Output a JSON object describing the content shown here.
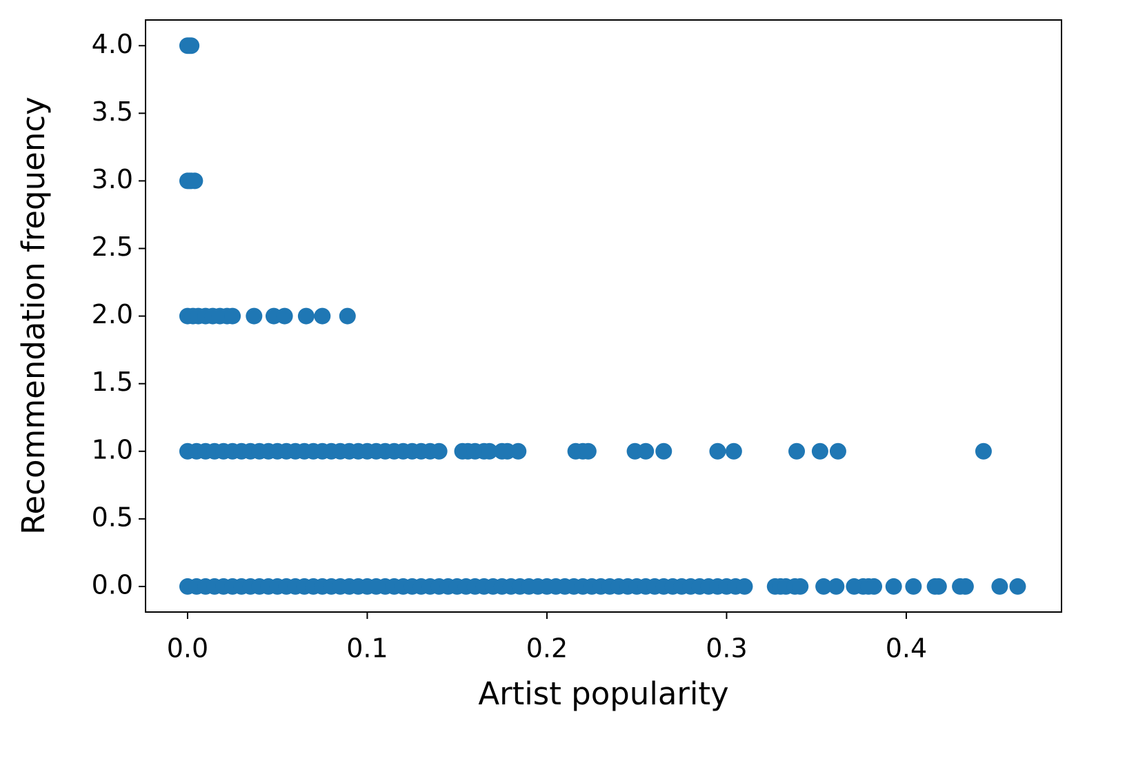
{
  "chart_data": {
    "type": "scatter",
    "x_label": "Artist popularity",
    "y_label": "Recommendation frequency",
    "color": "#1f77b4",
    "xlim": [
      -0.0234,
      0.4864
    ],
    "ylim": [
      -0.189,
      4.19
    ],
    "xticks": [
      {
        "value": 0,
        "label": "0.0"
      },
      0.1,
      0.2,
      0.3,
      0.4
    ],
    "yticks": [
      {
        "value": 0,
        "label": "0.0"
      },
      0.5,
      {
        "value": 1,
        "label": "1.0"
      },
      1.5,
      {
        "value": 2,
        "label": "2.0"
      },
      2.5,
      {
        "value": 3,
        "label": "3.0"
      },
      3.5,
      {
        "value": 4,
        "label": "4.0"
      }
    ],
    "x": [
      0,
      0.005,
      0.01,
      0.015,
      0.02,
      0.025,
      0.03,
      0.035,
      0.04,
      0.045,
      0.05,
      0.055,
      0.06,
      0.065,
      0.07,
      0.075,
      0.08,
      0.085,
      0.09,
      0.095,
      0.1,
      0.105,
      0.11,
      0.115,
      0.12,
      0.125,
      0.13,
      0.135,
      0.14,
      0.145,
      0.15,
      0.155,
      0.16,
      0.165,
      0.17,
      0.175,
      0.18,
      0.185,
      0.19,
      0.195,
      0.2,
      0.205,
      0.21,
      0.215,
      0.22,
      0.225,
      0.23,
      0.235,
      0.24,
      0.245,
      0.25,
      0.255,
      0.26,
      0.265,
      0.27,
      0.275,
      0.28,
      0.285,
      0.29,
      0.295,
      0.3,
      0.305,
      0.31,
      0.327,
      0.33,
      0.333,
      0.338,
      0.341,
      0.354,
      0.361,
      0.371,
      0.376,
      0.379,
      0.382,
      0.393,
      0.404,
      0.416,
      0.418,
      0.43,
      0.433,
      0.452,
      0.462,
      0,
      0.005,
      0.01,
      0.015,
      0.02,
      0.025,
      0.03,
      0.035,
      0.04,
      0.045,
      0.05,
      0.055,
      0.06,
      0.065,
      0.07,
      0.075,
      0.08,
      0.085,
      0.09,
      0.095,
      0.1,
      0.105,
      0.11,
      0.115,
      0.12,
      0.125,
      0.13,
      0.135,
      0.14,
      0.153,
      0.156,
      0.16,
      0.165,
      0.168,
      0.175,
      0.178,
      0.184,
      0.216,
      0.22,
      0.223,
      0.249,
      0.255,
      0.265,
      0.295,
      0.304,
      0.339,
      0.352,
      0.362,
      0.443,
      0,
      0.003,
      0.006,
      0.01,
      0.014,
      0.018,
      0.022,
      0.025,
      0.037,
      0.048,
      0.054,
      0.066,
      0.075,
      0.089,
      0,
      0.001,
      0.002,
      0.004,
      0,
      0.001,
      0.002
    ],
    "values": [
      0,
      0,
      0,
      0,
      0,
      0,
      0,
      0,
      0,
      0,
      0,
      0,
      0,
      0,
      0,
      0,
      0,
      0,
      0,
      0,
      0,
      0,
      0,
      0,
      0,
      0,
      0,
      0,
      0,
      0,
      0,
      0,
      0,
      0,
      0,
      0,
      0,
      0,
      0,
      0,
      0,
      0,
      0,
      0,
      0,
      0,
      0,
      0,
      0,
      0,
      0,
      0,
      0,
      0,
      0,
      0,
      0,
      0,
      0,
      0,
      0,
      0,
      0,
      0,
      0,
      0,
      0,
      0,
      0,
      0,
      0,
      0,
      0,
      0,
      0,
      0,
      0,
      0,
      0,
      0,
      0,
      0,
      1,
      1,
      1,
      1,
      1,
      1,
      1,
      1,
      1,
      1,
      1,
      1,
      1,
      1,
      1,
      1,
      1,
      1,
      1,
      1,
      1,
      1,
      1,
      1,
      1,
      1,
      1,
      1,
      1,
      1,
      1,
      1,
      1,
      1,
      1,
      1,
      1,
      1,
      1,
      1,
      1,
      1,
      1,
      1,
      1,
      1,
      1,
      1,
      1,
      2,
      2,
      2,
      2,
      2,
      2,
      2,
      2,
      2,
      2,
      2,
      2,
      2,
      2,
      3,
      3,
      3,
      3,
      4,
      4,
      4
    ]
  }
}
